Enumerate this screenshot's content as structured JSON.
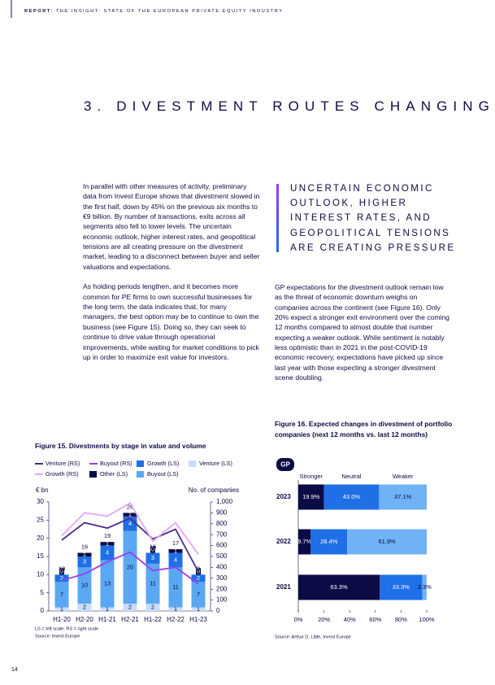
{
  "header": {
    "label": "REPORT:",
    "title": "THE INSIGHT: STATE OF THE EUROPEAN PRIVATE EQUITY INDUSTRY"
  },
  "section_title": "3. DIVESTMENT ROUTES CHANGING",
  "left_column": [
    "In parallel with other measures of activity, preliminary data from Invest Europe shows that divestment slowed in the first half, down by 45% on the previous six months to €9 billion. By number of transactions, exits across all segments also fell to lower levels. The uncertain economic outlook, higher interest rates, and geopolitical tensions are all creating pressure on the divestment market, leading to a disconnect between buyer and seller valuations and expectations.",
    "As holding periods lengthen, and it becomes more common for PE firms to own successful businesses for the long term, the data indicates that, for many managers, the best option may be to continue to own the business (see Figure 15). Doing so, they can seek to continue to drive value through operational improvements, while waiting for market conditions to pick up in order to maximize exit value for investors."
  ],
  "callout": "UNCERTAIN ECONOMIC OUTLOOK, HIGHER INTEREST RATES, AND GEOPOLITICAL TENSIONS ARE CREATING PRESSURE",
  "right_column": [
    "GP expectations for the divestment outlook remain low as the threat of economic downturn weighs on companies across the continent (see Figure 16). Only 20% expect a stronger exit environment over the coming 12 months compared to almost double that number expecting a weaker outlook. While sentiment is notably less optimistic than in 2021 in the post-COVID-19 economic recovery, expectations have picked up since last year with those expecting a stronger divestment scene doubling."
  ],
  "page_number": "14",
  "chart_data": [
    {
      "type": "bar",
      "stacked": true,
      "title": "Figure 15. Divestments by stage in value and volume",
      "y_axis_label": "€ bn",
      "y2_axis_label": "No. of companies",
      "categories": [
        "H1-20",
        "H2-20",
        "H1-21",
        "H2-21",
        "H1-22",
        "H2-22",
        "H1-23"
      ],
      "ylim": [
        0,
        30
      ],
      "yticks": [
        0,
        5,
        10,
        15,
        20,
        25,
        30
      ],
      "y2lim": [
        0,
        1000
      ],
      "y2ticks": [
        0,
        100,
        200,
        300,
        400,
        500,
        600,
        700,
        800,
        900,
        {
          "value": 1000,
          "label": "1,000"
        }
      ],
      "series": [
        {
          "name": "Venture (LS)",
          "color": "#c8dcfb",
          "values": [
            1,
            2,
            1,
            2,
            2,
            1,
            1
          ]
        },
        {
          "name": "Buyout (LS)",
          "color": "#5aa8f2",
          "values": [
            7,
            10,
            13,
            20,
            11,
            11,
            7
          ]
        },
        {
          "name": "Growth (LS)",
          "color": "#1f6fe6",
          "values": [
            2,
            3,
            4,
            4,
            3,
            4,
            2
          ]
        },
        {
          "name": "Other (LS)",
          "color": "#0b0b45",
          "values": [
            0,
            1,
            1,
            1,
            0,
            1,
            0
          ]
        },
        {
          "name": "Venture (RS)",
          "type": "line",
          "axis": "y2",
          "color": "#4b2a8c",
          "values": [
            650,
            810,
            760,
            850,
            660,
            750,
            360
          ]
        },
        {
          "name": "Buyout (RS)",
          "type": "line",
          "axis": "y2",
          "color": "#9a3cf0",
          "values": [
            280,
            340,
            450,
            540,
            370,
            400,
            250
          ]
        },
        {
          "name": "Growth (RS)",
          "type": "line",
          "axis": "y2",
          "color": "#e3a6f6",
          "values": [
            690,
            900,
            870,
            990,
            640,
            810,
            520
          ]
        }
      ],
      "totals": [
        10,
        16,
        19,
        26,
        16,
        17,
        9
      ],
      "notes": [
        "LS = left scale; RS = right scale",
        "Source: Invest Europe"
      ]
    },
    {
      "type": "bar",
      "orientation": "horizontal",
      "stacked": true,
      "title": "Figure 16. Expected changes in divestment of portfolio companies (next 12 months vs. last 12 months)",
      "badge": "GP",
      "categories": [
        "2023",
        "2022",
        "2021"
      ],
      "xlim": [
        0,
        100
      ],
      "xticks": [
        {
          "value": 0,
          "label": "0%"
        },
        {
          "value": 20,
          "label": "20%"
        },
        {
          "value": 40,
          "label": "40%"
        },
        {
          "value": 60,
          "label": "60%"
        },
        {
          "value": 80,
          "label": "80%"
        },
        {
          "value": 100,
          "label": "100%"
        }
      ],
      "series": [
        {
          "name": "Stronger",
          "color": "#0b0b45",
          "values": [
            19.9,
            9.7,
            63.3
          ],
          "value_labels": [
            "19.9%",
            "9.7%",
            "63.3%"
          ]
        },
        {
          "name": "Neutral",
          "color": "#1f6fe6",
          "values": [
            43.0,
            28.4,
            33.3
          ],
          "value_labels": [
            "43.0%",
            "28.4%",
            "33.3%"
          ]
        },
        {
          "name": "Weaker",
          "color": "#6fb2f5",
          "values": [
            37.1,
            61.9,
            3.3
          ],
          "value_labels": [
            "37.1%",
            "61.9%",
            "3.3%"
          ]
        }
      ],
      "source": "Source: Arthur D. Little, Invest Europe"
    }
  ]
}
